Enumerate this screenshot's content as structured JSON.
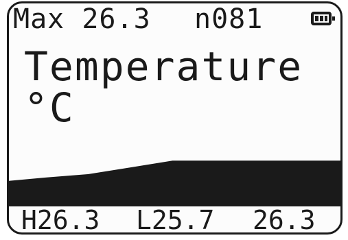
{
  "header": {
    "max": "Max 26.3",
    "count": "n081",
    "battery_icon": "battery-full-icon"
  },
  "title": "Temperature °C",
  "footer": {
    "high": "H26.3",
    "low": "L25.7",
    "current": "26.3"
  },
  "chart_data": {
    "type": "area",
    "x": [
      1,
      10,
      20,
      30,
      40,
      50,
      60,
      70,
      81
    ],
    "values": [
      25.7,
      25.8,
      25.9,
      26.1,
      26.3,
      26.3,
      26.3,
      26.3,
      26.3
    ],
    "ylim": [
      25.0,
      27.0
    ],
    "color": "#1a1a1a"
  }
}
